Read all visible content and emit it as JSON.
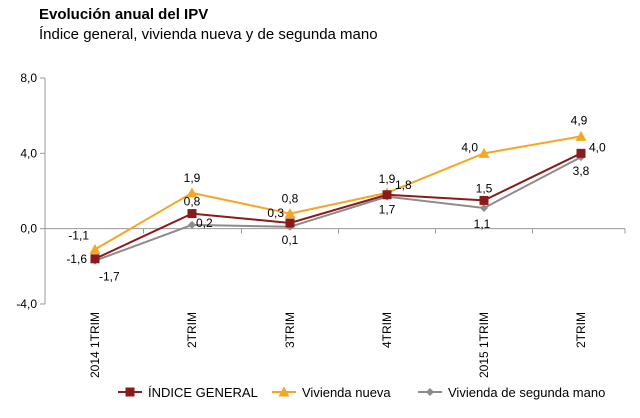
{
  "chart_data": {
    "type": "line",
    "title": "Evolución anual del IPV",
    "subtitle": "Índice general, vivienda nueva y de segunda mano",
    "xlabel": "",
    "ylabel": "",
    "categories": [
      "2014 1TRIM",
      "2TRIM",
      "3TRIM",
      "4TRIM",
      "2015 1TRIM",
      "2TRIM"
    ],
    "ylim": [
      -4.0,
      8.0
    ],
    "y_ticks": [
      "-4,0",
      "0,0",
      "4,0",
      "8,0"
    ],
    "grid": false,
    "legend_position": "bottom",
    "series": [
      {
        "name": "ÍNDICE GENERAL",
        "color": "#8b1a1a",
        "marker": "square",
        "values": [
          -1.6,
          0.8,
          0.3,
          1.8,
          1.5,
          4.0
        ],
        "labels": [
          "-1,6",
          "0,8",
          "0,3",
          "1,8",
          "1,5",
          "4,0"
        ]
      },
      {
        "name": "Vivienda nueva",
        "color": "#f5a623",
        "marker": "triangle",
        "values": [
          -1.1,
          1.9,
          0.8,
          1.9,
          4.0,
          4.9
        ],
        "labels": [
          "-1,1",
          "1,9",
          "0,8",
          "1,9",
          "4,0",
          "4,9"
        ]
      },
      {
        "name": "Vivienda de segunda mano",
        "color": "#8c8c8c",
        "marker": "diamond",
        "values": [
          -1.7,
          0.2,
          0.1,
          1.7,
          1.1,
          3.8
        ],
        "labels": [
          "-1,7",
          "0,2",
          "0,1",
          "1,7",
          "1,1",
          "3,8"
        ]
      }
    ]
  }
}
